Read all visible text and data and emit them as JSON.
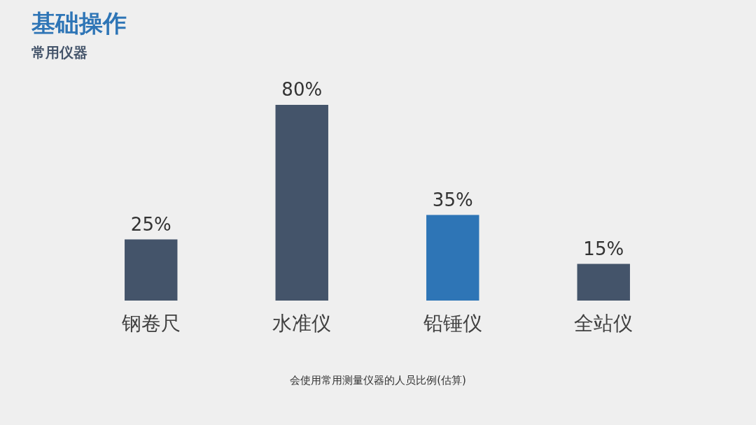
{
  "chart_data": {
    "type": "bar",
    "title": "基础操作",
    "subtitle": "常用仪器",
    "categories": [
      "钢卷尺",
      "水准仪",
      "铅锤仪",
      "全站仪"
    ],
    "values": [
      25,
      80,
      35,
      15
    ],
    "colors": [
      "#44546a",
      "#44546a",
      "#2e75b6",
      "#44546a"
    ],
    "value_labels": [
      "25%",
      "80%",
      "35%",
      "15%"
    ],
    "annotations": [
      "会使用常用测量仪器的人员比例(估算)"
    ]
  }
}
